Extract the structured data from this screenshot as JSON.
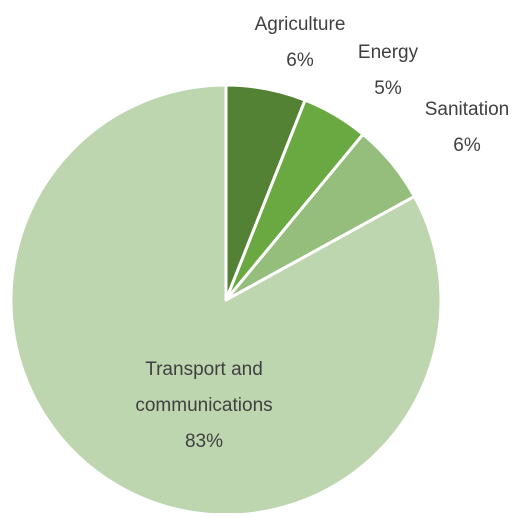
{
  "chart_data": {
    "type": "pie",
    "title": "",
    "start_angle_deg": 0,
    "direction": "clockwise",
    "slices": [
      {
        "label": "Agriculture",
        "value": 6,
        "percent_label": "6%",
        "color": "#548235"
      },
      {
        "label": "Energy",
        "value": 5,
        "percent_label": "5%",
        "color": "#6aa842"
      },
      {
        "label": "Sanitation",
        "value": 6,
        "percent_label": "6%",
        "color": "#95bd7c"
      },
      {
        "label": "Transport and communications",
        "value": 83,
        "percent_label": "83%",
        "color": "#bdd6b0",
        "label_lines": [
          "Transport and",
          "communications"
        ]
      }
    ],
    "legend": "none",
    "data_labels": "outside for small slices, inside for large slice",
    "slice_border_color": "#ffffff"
  }
}
